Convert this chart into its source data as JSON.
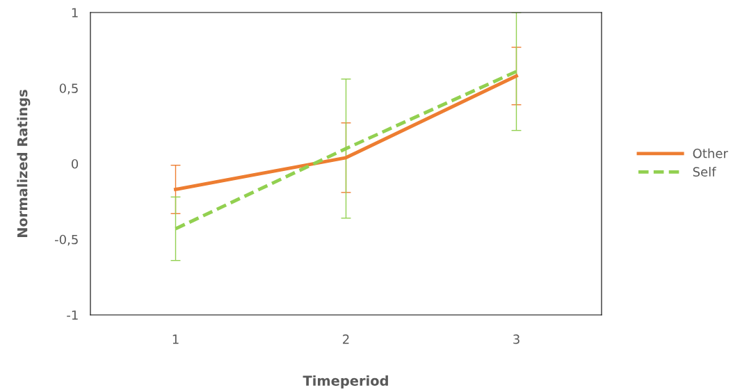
{
  "chart_data": {
    "type": "line",
    "xlabel": "Timeperiod",
    "ylabel": "Normalized Ratings",
    "categories": [
      "1",
      "2",
      "3"
    ],
    "series": [
      {
        "name": "Other",
        "color": "#ed7d31",
        "line_style": "solid",
        "values": [
          -0.17,
          0.04,
          0.58
        ],
        "errors": [
          0.16,
          0.23,
          0.19
        ]
      },
      {
        "name": "Self",
        "color": "#92d050",
        "line_style": "dashed",
        "values": [
          -0.43,
          0.1,
          0.61
        ],
        "errors": [
          0.21,
          0.46,
          0.39
        ]
      }
    ],
    "ylim": [
      -1,
      1
    ],
    "yticks": [
      -1,
      {
        "value": -0.5,
        "label": "-0,5"
      },
      0,
      {
        "value": 0.5,
        "label": "0,5"
      },
      1
    ],
    "grid": false,
    "legend": "right",
    "marker": "none"
  }
}
